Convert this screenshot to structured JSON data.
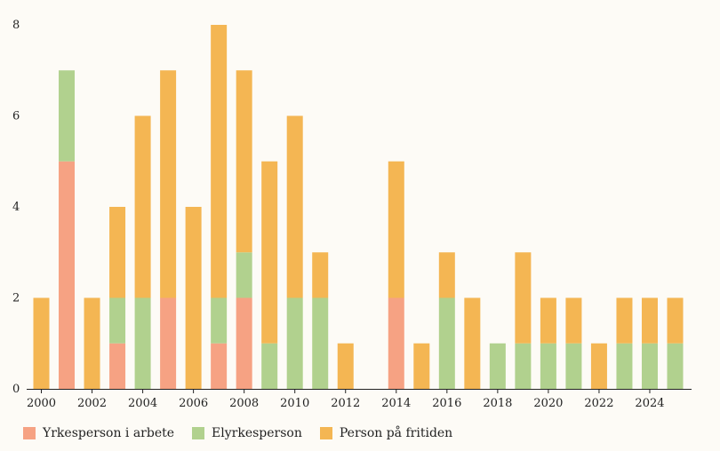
{
  "chart_data": {
    "type": "bar",
    "stacked": true,
    "title": "",
    "xlabel": "",
    "ylabel": "",
    "ylim": [
      0,
      8
    ],
    "y_ticks": [
      "0",
      "2",
      "4",
      "6",
      "8"
    ],
    "x_ticks": [
      "2000",
      "2002",
      "2004",
      "2006",
      "2008",
      "2010",
      "2012",
      "2014",
      "2016",
      "2018",
      "2020",
      "2022",
      "2024"
    ],
    "grid": false,
    "legend_position": "bottom-left",
    "categories": [
      "2000",
      "2001",
      "2002",
      "2003",
      "2004",
      "2005",
      "2006",
      "2007",
      "2008",
      "2009",
      "2010",
      "2011",
      "2012",
      "2013",
      "2014",
      "2015",
      "2016",
      "2017",
      "2018",
      "2019",
      "2020",
      "2021",
      "2022",
      "2023",
      "2024",
      "2025"
    ],
    "series": [
      {
        "name": "Yrkesperson i arbete",
        "color": "#f6a283",
        "values": [
          0,
          5,
          0,
          1,
          0,
          2,
          0,
          1,
          2,
          0,
          0,
          0,
          0,
          0,
          2,
          0,
          0,
          0,
          0,
          0,
          0,
          0,
          0,
          0,
          0,
          0
        ]
      },
      {
        "name": "Elyrkesperson",
        "color": "#b1d18e",
        "values": [
          0,
          2,
          0,
          1,
          2,
          0,
          0,
          1,
          1,
          1,
          2,
          2,
          0,
          0,
          0,
          0,
          2,
          0,
          1,
          1,
          1,
          1,
          0,
          1,
          1,
          1
        ]
      },
      {
        "name": "Person på fritiden",
        "color": "#f4b653",
        "values": [
          2,
          0,
          2,
          2,
          4,
          5,
          4,
          6,
          4,
          4,
          4,
          1,
          1,
          0,
          3,
          1,
          1,
          2,
          0,
          2,
          1,
          1,
          1,
          1,
          1,
          1
        ]
      }
    ]
  }
}
